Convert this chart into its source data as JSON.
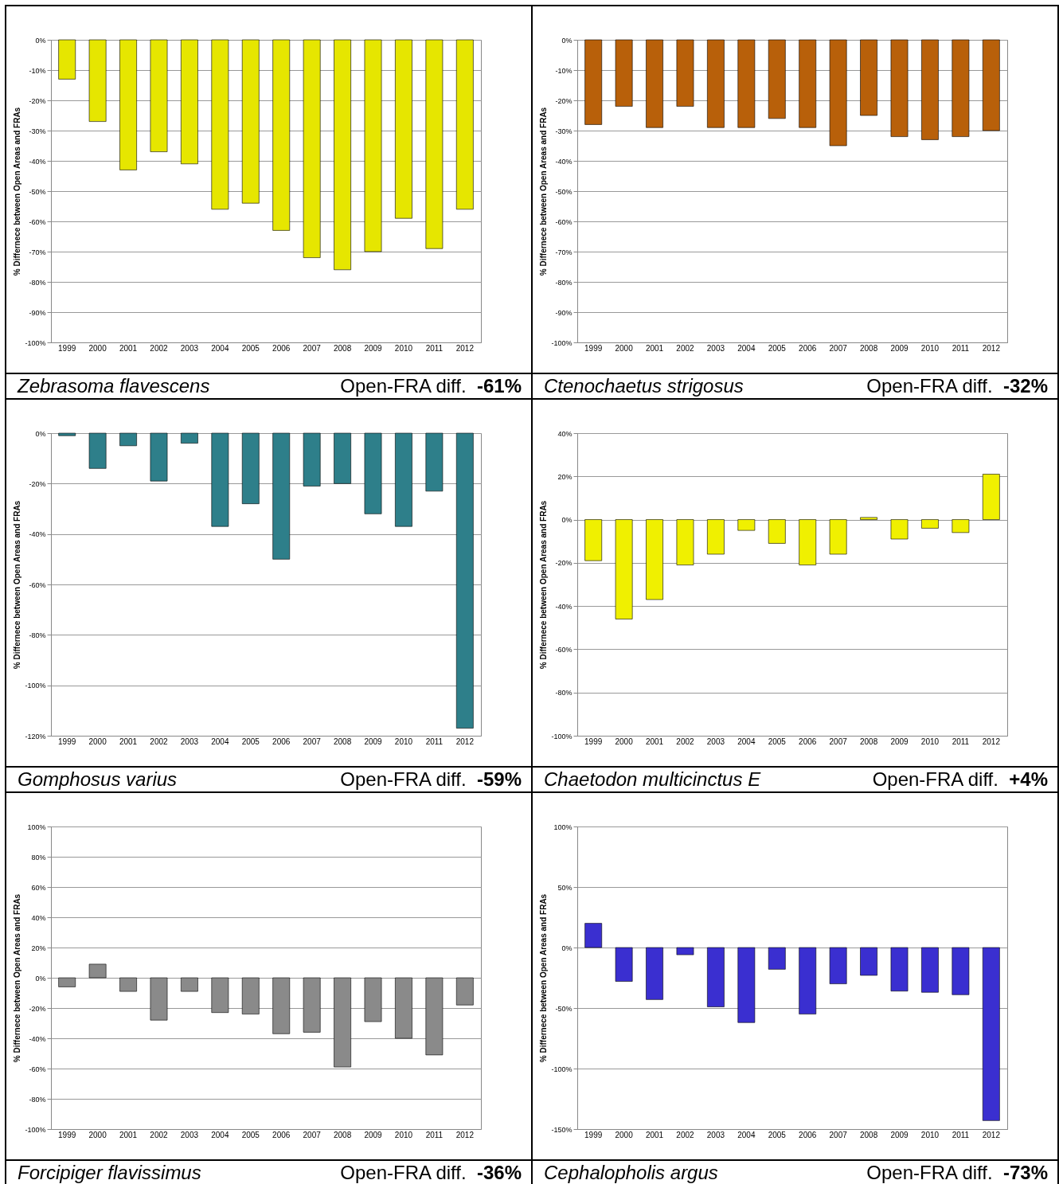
{
  "chart_data": [
    {
      "type": "bar",
      "title": "Zebrasoma flavescens",
      "annotations": [
        "Open-FRA diff. -61%"
      ],
      "ylabel": "% Differnece between Open Areas and FRAs",
      "categories": [
        "1999",
        "2000",
        "2001",
        "2002",
        "2003",
        "2004",
        "2005",
        "2006",
        "2007",
        "2008",
        "2009",
        "2010",
        "2011",
        "2012"
      ],
      "values": [
        -13,
        -27,
        -43,
        -37,
        -41,
        -56,
        -54,
        -63,
        -72,
        -76,
        -70,
        -59,
        -69,
        -56
      ],
      "color": "#e6e600",
      "ylim": [
        -100,
        0
      ],
      "yticks": [
        {
          "value": -100,
          "label": "-100%"
        },
        {
          "value": -90,
          "label": "-90%"
        },
        {
          "value": -80,
          "label": "-80%"
        },
        {
          "value": -70,
          "label": "-70%"
        },
        {
          "value": -60,
          "label": "-60%"
        },
        {
          "value": -50,
          "label": "-50%"
        },
        {
          "value": -40,
          "label": "-40%"
        },
        {
          "value": -30,
          "label": "-30%"
        },
        {
          "value": -20,
          "label": "-20%"
        },
        {
          "value": -10,
          "label": "-10%"
        },
        {
          "value": 0,
          "label": "0%"
        }
      ],
      "grid": "y"
    },
    {
      "type": "bar",
      "title": "Ctenochaetus strigosus",
      "annotations": [
        "Open-FRA diff. -32%"
      ],
      "ylabel": "% Differnece between Open Areas and FRAs",
      "categories": [
        "1999",
        "2000",
        "2001",
        "2002",
        "2003",
        "2004",
        "2005",
        "2006",
        "2007",
        "2008",
        "2009",
        "2010",
        "2011",
        "2012"
      ],
      "values": [
        -28,
        -22,
        -29,
        -22,
        -29,
        -29,
        -26,
        -29,
        -35,
        -25,
        -32,
        -33,
        -32,
        -30
      ],
      "color": "#b8600a",
      "ylim": [
        -100,
        0
      ],
      "yticks": [
        {
          "value": -100,
          "label": "-100%"
        },
        {
          "value": -90,
          "label": "-90%"
        },
        {
          "value": -80,
          "label": "-80%"
        },
        {
          "value": -70,
          "label": "-70%"
        },
        {
          "value": -60,
          "label": "-60%"
        },
        {
          "value": -50,
          "label": "-50%"
        },
        {
          "value": -40,
          "label": "-40%"
        },
        {
          "value": -30,
          "label": "-30%"
        },
        {
          "value": -20,
          "label": "-20%"
        },
        {
          "value": -10,
          "label": "-10%"
        },
        {
          "value": 0,
          "label": "0%"
        }
      ],
      "grid": "y"
    },
    {
      "type": "bar",
      "title": "Gomphosus varius",
      "annotations": [
        "Open-FRA diff. -59%"
      ],
      "ylabel": "% Differnece between Open Areas and FRAs",
      "categories": [
        "1999",
        "2000",
        "2001",
        "2002",
        "2003",
        "2004",
        "2005",
        "2006",
        "2007",
        "2008",
        "2009",
        "2010",
        "2011",
        "2012"
      ],
      "values": [
        -1,
        -14,
        -5,
        -19,
        -4,
        -37,
        -28,
        -50,
        -21,
        -20,
        -32,
        -37,
        -23,
        -117
      ],
      "color": "#2e7f8a",
      "ylim": [
        -120,
        0
      ],
      "yticks": [
        {
          "value": -120,
          "label": "-120%"
        },
        {
          "value": -100,
          "label": "-100%"
        },
        {
          "value": -80,
          "label": "-80%"
        },
        {
          "value": -60,
          "label": "-60%"
        },
        {
          "value": -40,
          "label": "-40%"
        },
        {
          "value": -20,
          "label": "-20%"
        },
        {
          "value": 0,
          "label": "0%"
        }
      ],
      "grid": "y"
    },
    {
      "type": "bar",
      "title": "Chaetodon multicinctus E",
      "annotations": [
        "Open-FRA diff. +4%"
      ],
      "ylabel": "% Differnece between Open Areas and FRAs",
      "categories": [
        "1999",
        "2000",
        "2001",
        "2002",
        "2003",
        "2004",
        "2005",
        "2006",
        "2007",
        "2008",
        "2009",
        "2010",
        "2011",
        "2012"
      ],
      "values": [
        -19,
        -46,
        -37,
        -21,
        -16,
        -5,
        -11,
        -21,
        -16,
        1,
        -9,
        -4,
        -6,
        21
      ],
      "color": "#f0f000",
      "ylim": [
        -100,
        40
      ],
      "yticks": [
        {
          "value": -100,
          "label": "-100%"
        },
        {
          "value": -80,
          "label": "-80%"
        },
        {
          "value": -60,
          "label": "-60%"
        },
        {
          "value": -40,
          "label": "-40%"
        },
        {
          "value": -20,
          "label": "-20%"
        },
        {
          "value": 0,
          "label": "0%"
        },
        {
          "value": 20,
          "label": "20%"
        },
        {
          "value": 40,
          "label": "40%"
        }
      ],
      "grid": "y"
    },
    {
      "type": "bar",
      "title": "Forcipiger flavissimus",
      "annotations": [
        "Open-FRA diff. -36%"
      ],
      "ylabel": "% Differnece between Open Areas and FRAs",
      "categories": [
        "1999",
        "2000",
        "2001",
        "2002",
        "2003",
        "2004",
        "2005",
        "2006",
        "2007",
        "2008",
        "2009",
        "2010",
        "2011",
        "2012"
      ],
      "values": [
        -6,
        9,
        -9,
        -28,
        -9,
        -23,
        -24,
        -37,
        -36,
        -59,
        -29,
        -40,
        -51,
        -18
      ],
      "color": "#8a8a8a",
      "ylim": [
        -100,
        100
      ],
      "yticks": [
        {
          "value": -100,
          "label": "-100%"
        },
        {
          "value": -80,
          "label": "-80%"
        },
        {
          "value": -60,
          "label": "-60%"
        },
        {
          "value": -40,
          "label": "-40%"
        },
        {
          "value": -20,
          "label": "-20%"
        },
        {
          "value": 0,
          "label": "0%"
        },
        {
          "value": 20,
          "label": "20%"
        },
        {
          "value": 40,
          "label": "40%"
        },
        {
          "value": 60,
          "label": "60%"
        },
        {
          "value": 80,
          "label": "80%"
        },
        {
          "value": 100,
          "label": "100%"
        }
      ],
      "grid": "y"
    },
    {
      "type": "bar",
      "title": "Cephalopholis argus",
      "annotations": [
        "Open-FRA diff. -73%"
      ],
      "ylabel": "% Differnece between Open Areas and FRAs",
      "categories": [
        "1999",
        "2000",
        "2001",
        "2002",
        "2003",
        "2004",
        "2005",
        "2006",
        "2007",
        "2008",
        "2009",
        "2010",
        "2011",
        "2012"
      ],
      "values": [
        20,
        -28,
        -43,
        -6,
        -49,
        -62,
        -18,
        -55,
        -30,
        -23,
        -36,
        -37,
        -39,
        -143
      ],
      "color": "#3a2fd0",
      "ylim": [
        -150,
        100
      ],
      "yticks": [
        {
          "value": -150,
          "label": "-150%"
        },
        {
          "value": -100,
          "label": "-100%"
        },
        {
          "value": -50,
          "label": "-50%"
        },
        {
          "value": 0,
          "label": "0%"
        },
        {
          "value": 50,
          "label": "50%"
        },
        {
          "value": 100,
          "label": "100%"
        }
      ],
      "grid": "y"
    }
  ]
}
